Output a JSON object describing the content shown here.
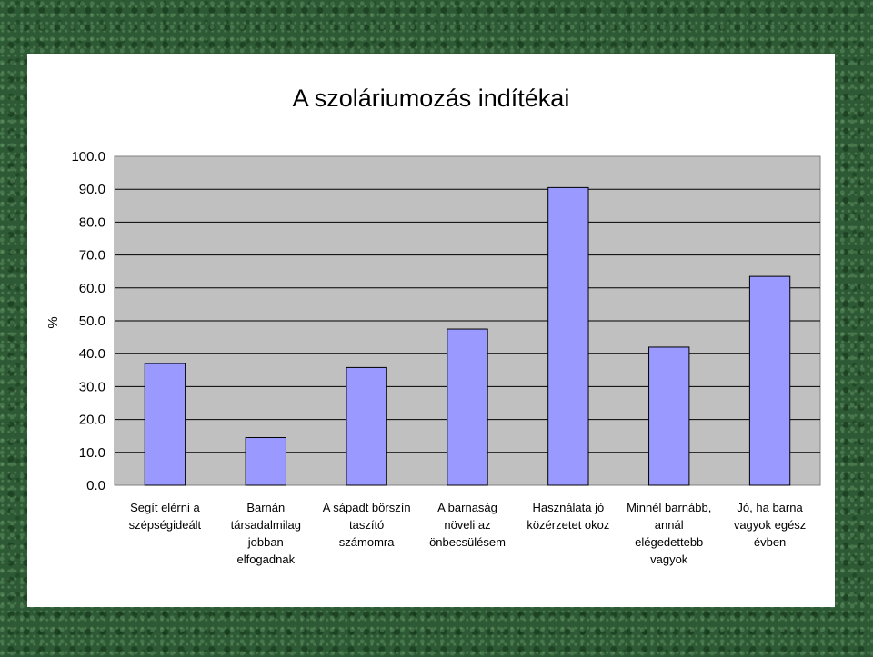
{
  "chart_data": {
    "type": "bar",
    "title": "A szoláriumozás indítékai",
    "ylabel": "%",
    "xlabel": "",
    "ylim": [
      0,
      100
    ],
    "yticks": [
      "0.0",
      "10.0",
      "20.0",
      "30.0",
      "40.0",
      "50.0",
      "60.0",
      "70.0",
      "80.0",
      "90.0",
      "100.0"
    ],
    "categories": [
      [
        "Segít elérni a",
        "szépségideált"
      ],
      [
        "Barnán",
        "társadalmilag",
        "jobban",
        "elfogadnak"
      ],
      [
        "A sápadt börszín",
        "taszító",
        "számomra"
      ],
      [
        "A barnaság",
        "növeli az",
        "önbecsülésem"
      ],
      [
        "Használata jó",
        "közérzetet okoz"
      ],
      [
        "Minnél barnább,",
        "annál",
        "elégedettebb",
        "vagyok"
      ],
      [
        "Jó, ha barna",
        "vagyok egész",
        "évben"
      ]
    ],
    "values": [
      37.0,
      14.5,
      35.8,
      47.5,
      90.5,
      42.0,
      63.5
    ],
    "bar_color": "#9999ff",
    "plot_background": "#c0c0c0",
    "grid": true,
    "legend": "none"
  }
}
